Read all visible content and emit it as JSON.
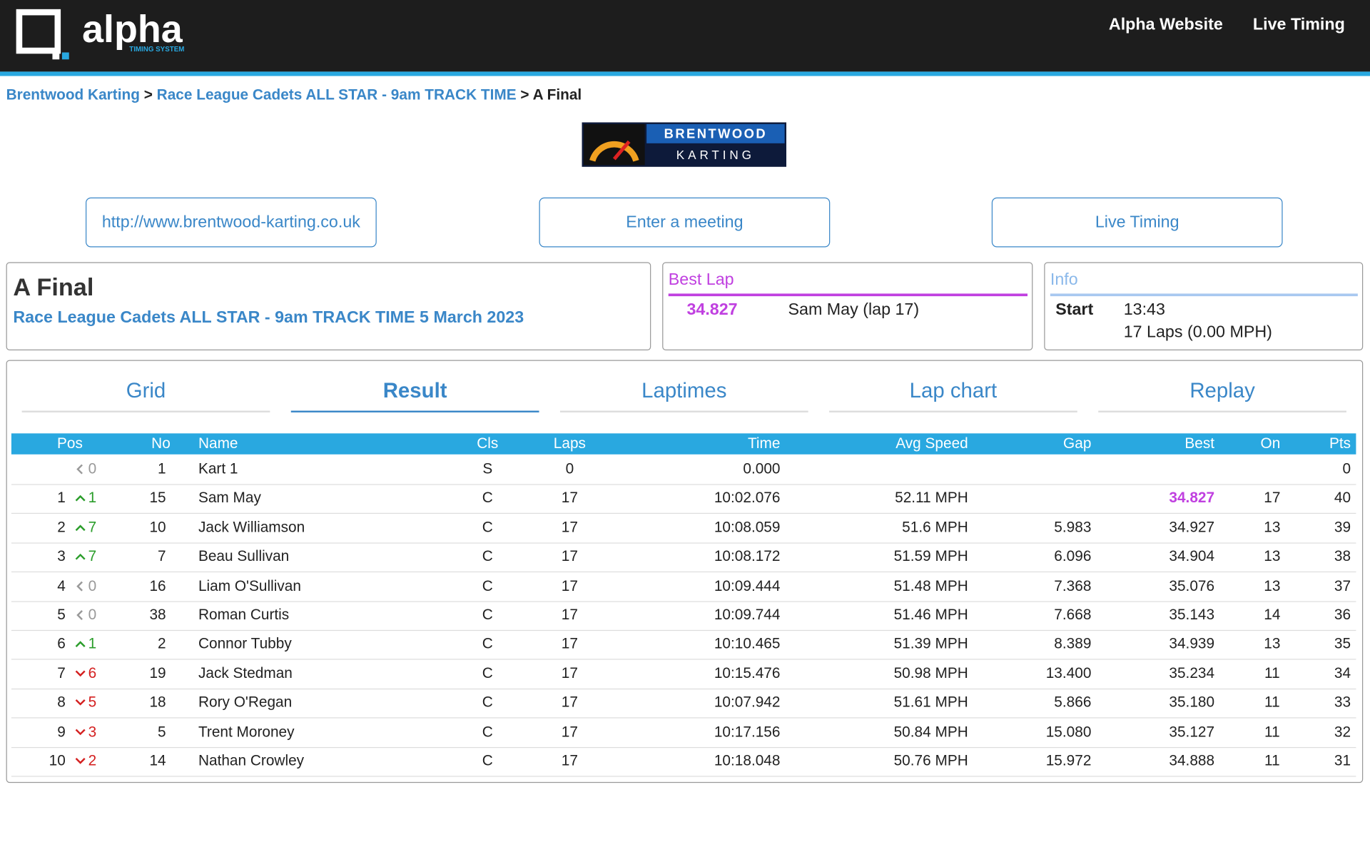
{
  "header": {
    "brand": "alpha",
    "brand_sub": "TIMING SYSTEM",
    "nav": [
      "Alpha Website",
      "Live Timing"
    ]
  },
  "breadcrumb": [
    "Brentwood Karting",
    "Race League Cadets ALL STAR - 9am TRACK TIME",
    "A Final"
  ],
  "breadcrumb_sep": ">",
  "logo": {
    "line1": "BRENTWOOD",
    "line2": "KARTING"
  },
  "buttons": [
    "http://www.brentwood-karting.co.uk",
    "Enter a meeting",
    "Live Timing"
  ],
  "race": {
    "title": "A Final",
    "subtitle": "Race League Cadets ALL STAR - 9am TRACK TIME 5 March 2023"
  },
  "best_lap": {
    "heading": "Best Lap",
    "time": "34.827",
    "driver": "Sam May (lap 17)"
  },
  "info": {
    "heading": "Info",
    "label": "Start",
    "start": "13:43",
    "laps": "17 Laps (0.00 MPH)"
  },
  "tabs": {
    "items": [
      "Grid",
      "Result",
      "Laptimes",
      "Lap chart",
      "Replay"
    ],
    "active": 1
  },
  "table": {
    "columns": [
      "Pos",
      "No",
      "Name",
      "Cls",
      "Laps",
      "Time",
      "Avg Speed",
      "Gap",
      "Best",
      "On",
      "Pts"
    ],
    "rows": [
      {
        "pos": null,
        "trend": "same",
        "change": 0,
        "no": 1,
        "name": "Kart 1",
        "cls": "S",
        "laps": 0,
        "time": "0.000",
        "avg": null,
        "gap": null,
        "best": null,
        "on": null,
        "pts": 0
      },
      {
        "pos": 1,
        "trend": "up",
        "change": 1,
        "no": 15,
        "name": "Sam May",
        "cls": "C",
        "laps": 17,
        "time": "10:02.076",
        "avg": "52.11 MPH",
        "gap": null,
        "best": "34.827",
        "best_highlight": true,
        "on": 17,
        "pts": 40
      },
      {
        "pos": 2,
        "trend": "up",
        "change": 7,
        "no": 10,
        "name": "Jack Williamson",
        "cls": "C",
        "laps": 17,
        "time": "10:08.059",
        "avg": "51.6 MPH",
        "gap": "5.983",
        "best": "34.927",
        "on": 13,
        "pts": 39
      },
      {
        "pos": 3,
        "trend": "up",
        "change": 7,
        "no": 7,
        "name": "Beau Sullivan",
        "cls": "C",
        "laps": 17,
        "time": "10:08.172",
        "avg": "51.59 MPH",
        "gap": "6.096",
        "best": "34.904",
        "on": 13,
        "pts": 38
      },
      {
        "pos": 4,
        "trend": "same",
        "change": 0,
        "no": 16,
        "name": "Liam O'Sullivan",
        "cls": "C",
        "laps": 17,
        "time": "10:09.444",
        "avg": "51.48 MPH",
        "gap": "7.368",
        "best": "35.076",
        "on": 13,
        "pts": 37
      },
      {
        "pos": 5,
        "trend": "same",
        "change": 0,
        "no": 38,
        "name": "Roman Curtis",
        "cls": "C",
        "laps": 17,
        "time": "10:09.744",
        "avg": "51.46 MPH",
        "gap": "7.668",
        "best": "35.143",
        "on": 14,
        "pts": 36
      },
      {
        "pos": 6,
        "trend": "up",
        "change": 1,
        "no": 2,
        "name": "Connor Tubby",
        "cls": "C",
        "laps": 17,
        "time": "10:10.465",
        "avg": "51.39 MPH",
        "gap": "8.389",
        "best": "34.939",
        "on": 13,
        "pts": 35
      },
      {
        "pos": 7,
        "trend": "down",
        "change": 6,
        "no": 19,
        "name": "Jack Stedman",
        "cls": "C",
        "laps": 17,
        "time": "10:15.476",
        "avg": "50.98 MPH",
        "gap": "13.400",
        "best": "35.234",
        "on": 11,
        "pts": 34
      },
      {
        "pos": 8,
        "trend": "down",
        "change": 5,
        "no": 18,
        "name": "Rory O'Regan",
        "cls": "C",
        "laps": 17,
        "time": "10:07.942",
        "avg": "51.61 MPH",
        "gap": "5.866",
        "best": "35.180",
        "on": 11,
        "pts": 33
      },
      {
        "pos": 9,
        "trend": "down",
        "change": 3,
        "no": 5,
        "name": "Trent Moroney",
        "cls": "C",
        "laps": 17,
        "time": "10:17.156",
        "avg": "50.84 MPH",
        "gap": "15.080",
        "best": "35.127",
        "on": 11,
        "pts": 32
      },
      {
        "pos": 10,
        "trend": "down",
        "change": 2,
        "no": 14,
        "name": "Nathan Crowley",
        "cls": "C",
        "laps": 17,
        "time": "10:18.048",
        "avg": "50.76 MPH",
        "gap": "15.972",
        "best": "34.888",
        "on": 11,
        "pts": 31
      }
    ]
  }
}
